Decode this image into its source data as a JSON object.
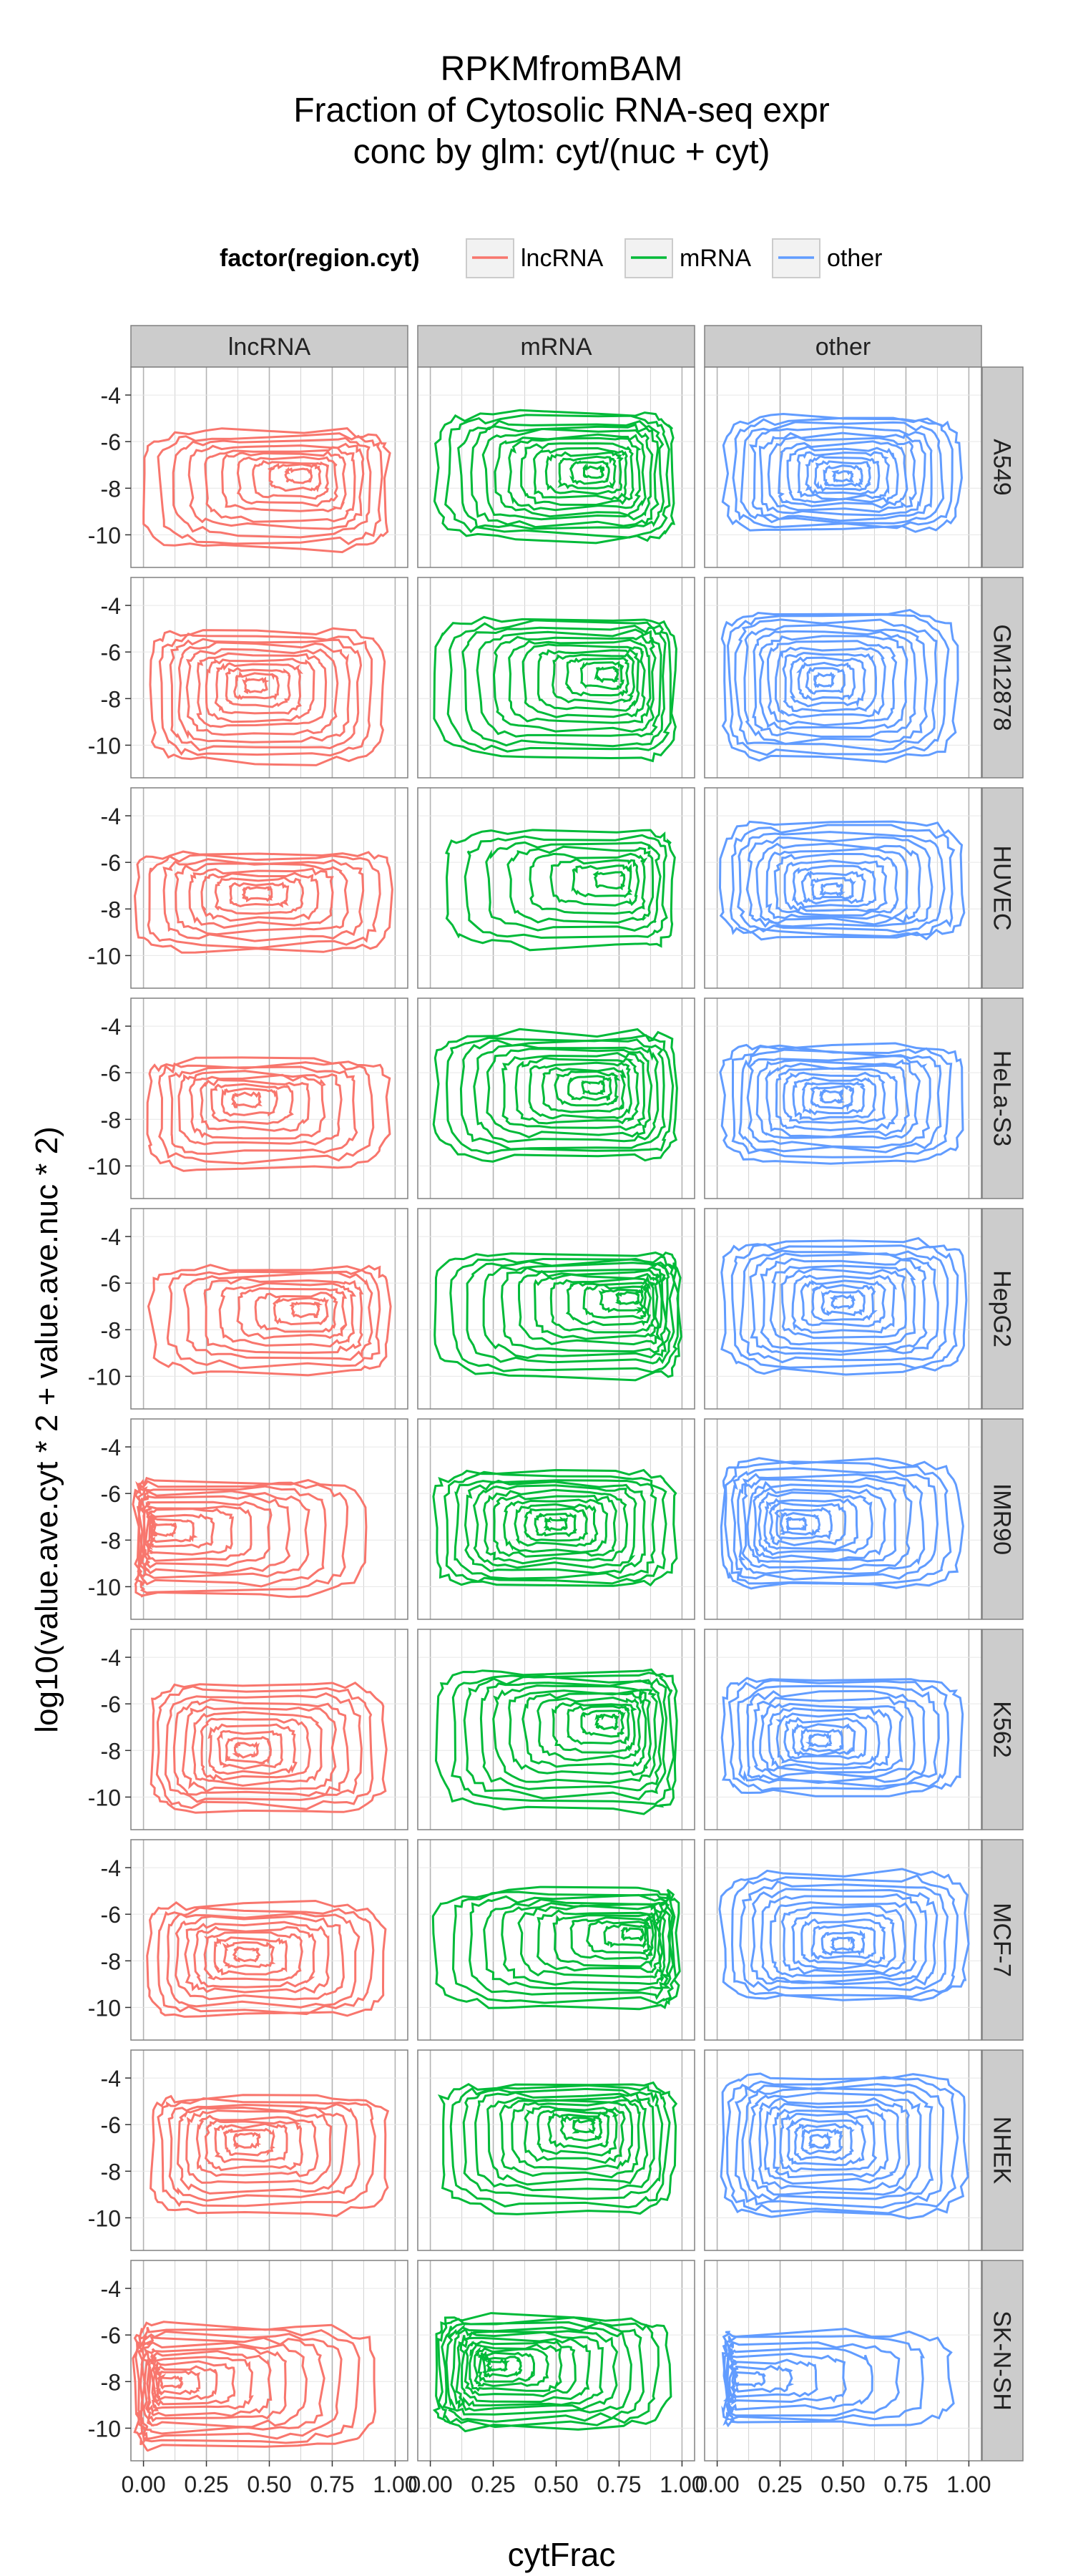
{
  "chart_data": {
    "type": "contour",
    "title": [
      "RPKMfromBAM",
      "Fraction of Cytosolic RNA-seq expr",
      "conc by glm: cyt/(nuc + cyt)"
    ],
    "xlabel": "cytFrac",
    "ylabel": "log10(value.ave.cyt * 2 + value.ave.nuc * 2)",
    "legend": {
      "title": "factor(region.cyt)",
      "placement": "top",
      "items": [
        {
          "name": "lncRNA",
          "color": "#F8766D"
        },
        {
          "name": "mRNA",
          "color": "#00BA38"
        },
        {
          "name": "other",
          "color": "#619CFF"
        }
      ]
    },
    "col_facets": [
      "lncRNA",
      "mRNA",
      "other"
    ],
    "row_facets": [
      "A549",
      "GM12878",
      "HUVEC",
      "HeLa-S3",
      "HepG2",
      "IMR90",
      "K562",
      "MCF-7",
      "NHEK",
      "SK-N-SH"
    ],
    "xlim": [
      -0.05,
      1.05
    ],
    "ylim": [
      -11.4,
      -2.8
    ],
    "x_ticks": [
      0,
      0.25,
      0.5,
      0.75,
      1
    ],
    "x_tick_labels": [
      "0.00",
      "0.25",
      "0.50",
      "0.75",
      "1.00"
    ],
    "y_ticks": [
      -4,
      -6,
      -8,
      -10
    ],
    "y_tick_labels": [
      "-4",
      "-6",
      "-8",
      "-10"
    ],
    "grid": true,
    "panels": [
      {
        "row": "A549",
        "col": "lncRNA",
        "x0": 0.0,
        "x1": 0.97,
        "y0": -10.6,
        "y1": -5.6,
        "cx": 0.63,
        "cy": -7.4,
        "levels": 10
      },
      {
        "row": "A549",
        "col": "mRNA",
        "x0": 0.02,
        "x1": 0.97,
        "y0": -10.2,
        "y1": -4.8,
        "cx": 0.66,
        "cy": -7.3,
        "levels": 13
      },
      {
        "row": "A549",
        "col": "other",
        "x0": 0.03,
        "x1": 0.96,
        "y0": -9.8,
        "y1": -4.9,
        "cx": 0.5,
        "cy": -7.5,
        "levels": 13
      },
      {
        "row": "GM12878",
        "col": "lncRNA",
        "x0": 0.03,
        "x1": 0.95,
        "y0": -10.7,
        "y1": -5.1,
        "cx": 0.44,
        "cy": -7.4,
        "levels": 11
      },
      {
        "row": "GM12878",
        "col": "mRNA",
        "x0": 0.02,
        "x1": 0.97,
        "y0": -10.6,
        "y1": -4.6,
        "cx": 0.72,
        "cy": -6.9,
        "levels": 12
      },
      {
        "row": "GM12878",
        "col": "other",
        "x0": 0.02,
        "x1": 0.95,
        "y0": -10.6,
        "y1": -4.3,
        "cx": 0.42,
        "cy": -7.2,
        "levels": 13
      },
      {
        "row": "HUVEC",
        "col": "lncRNA",
        "x0": -0.03,
        "x1": 0.99,
        "y0": -9.8,
        "y1": -5.6,
        "cx": 0.45,
        "cy": -7.3,
        "levels": 9
      },
      {
        "row": "HUVEC",
        "col": "mRNA",
        "x0": 0.06,
        "x1": 0.96,
        "y0": -9.6,
        "y1": -4.7,
        "cx": 0.74,
        "cy": -6.7,
        "levels": 8
      },
      {
        "row": "HUVEC",
        "col": "other",
        "x0": 0.02,
        "x1": 0.98,
        "y0": -9.2,
        "y1": -4.3,
        "cx": 0.45,
        "cy": -7.2,
        "levels": 12
      },
      {
        "row": "HeLa-S3",
        "col": "lncRNA",
        "x0": 0.02,
        "x1": 0.97,
        "y0": -10.1,
        "y1": -5.5,
        "cx": 0.4,
        "cy": -7.1,
        "levels": 9
      },
      {
        "row": "HeLa-S3",
        "col": "mRNA",
        "x0": 0.02,
        "x1": 0.98,
        "y0": -9.7,
        "y1": -4.3,
        "cx": 0.66,
        "cy": -6.6,
        "levels": 12
      },
      {
        "row": "HeLa-S3",
        "col": "other",
        "x0": 0.02,
        "x1": 0.97,
        "y0": -9.8,
        "y1": -4.8,
        "cx": 0.45,
        "cy": -7.0,
        "levels": 12
      },
      {
        "row": "HepG2",
        "col": "lncRNA",
        "x0": 0.03,
        "x1": 0.97,
        "y0": -9.8,
        "y1": -5.3,
        "cx": 0.66,
        "cy": -7.1,
        "levels": 9
      },
      {
        "row": "HepG2",
        "col": "mRNA",
        "x0": 0.02,
        "x1": 0.99,
        "y0": -10.0,
        "y1": -4.8,
        "cx": 0.81,
        "cy": -6.6,
        "levels": 12
      },
      {
        "row": "HepG2",
        "col": "other",
        "x0": 0.02,
        "x1": 0.99,
        "y0": -9.8,
        "y1": -4.2,
        "cx": 0.5,
        "cy": -6.8,
        "levels": 12
      },
      {
        "row": "IMR90",
        "col": "lncRNA",
        "x0": -0.03,
        "x1": 0.88,
        "y0": -10.4,
        "y1": -5.4,
        "cx": 0.05,
        "cy": -7.5,
        "levels": 11
      },
      {
        "row": "IMR90",
        "col": "mRNA",
        "x0": 0.02,
        "x1": 0.97,
        "y0": -10.0,
        "y1": -5.0,
        "cx": 0.5,
        "cy": -7.3,
        "levels": 12
      },
      {
        "row": "IMR90",
        "col": "other",
        "x0": 0.02,
        "x1": 0.97,
        "y0": -10.0,
        "y1": -4.6,
        "cx": 0.3,
        "cy": -7.3,
        "levels": 13
      },
      {
        "row": "K562",
        "col": "lncRNA",
        "x0": 0.03,
        "x1": 0.96,
        "y0": -10.6,
        "y1": -5.1,
        "cx": 0.4,
        "cy": -8.0,
        "levels": 11
      },
      {
        "row": "K562",
        "col": "mRNA",
        "x0": 0.03,
        "x1": 0.98,
        "y0": -10.6,
        "y1": -4.6,
        "cx": 0.72,
        "cy": -6.7,
        "levels": 12
      },
      {
        "row": "K562",
        "col": "other",
        "x0": 0.02,
        "x1": 0.97,
        "y0": -9.8,
        "y1": -4.9,
        "cx": 0.4,
        "cy": -7.6,
        "levels": 12
      },
      {
        "row": "MCF-7",
        "col": "lncRNA",
        "x0": 0.02,
        "x1": 0.96,
        "y0": -10.4,
        "y1": -5.6,
        "cx": 0.4,
        "cy": -7.7,
        "levels": 10
      },
      {
        "row": "MCF-7",
        "col": "mRNA",
        "x0": 0.02,
        "x1": 0.98,
        "y0": -10.0,
        "y1": -5.0,
        "cx": 0.83,
        "cy": -6.8,
        "levels": 12
      },
      {
        "row": "MCF-7",
        "col": "other",
        "x0": 0.02,
        "x1": 0.99,
        "y0": -9.6,
        "y1": -4.2,
        "cx": 0.5,
        "cy": -7.3,
        "levels": 12
      },
      {
        "row": "NHEK",
        "col": "lncRNA",
        "x0": 0.03,
        "x1": 0.97,
        "y0": -9.8,
        "y1": -4.8,
        "cx": 0.4,
        "cy": -6.6,
        "levels": 10
      },
      {
        "row": "NHEK",
        "col": "mRNA",
        "x0": 0.04,
        "x1": 0.97,
        "y0": -9.7,
        "y1": -4.3,
        "cx": 0.62,
        "cy": -6.0,
        "levels": 12
      },
      {
        "row": "NHEK",
        "col": "other",
        "x0": 0.02,
        "x1": 0.99,
        "y0": -9.9,
        "y1": -3.9,
        "cx": 0.4,
        "cy": -6.7,
        "levels": 13
      },
      {
        "row": "SK-N-SH",
        "col": "lncRNA",
        "x0": -0.03,
        "x1": 0.92,
        "y0": -10.8,
        "y1": -5.6,
        "cx": 0.08,
        "cy": -8.0,
        "levels": 12
      },
      {
        "row": "SK-N-SH",
        "col": "mRNA",
        "x0": 0.02,
        "x1": 0.95,
        "y0": -10.0,
        "y1": -5.2,
        "cx": 0.25,
        "cy": -7.3,
        "levels": 13
      },
      {
        "row": "SK-N-SH",
        "col": "other",
        "x0": 0.03,
        "x1": 0.93,
        "y0": -9.8,
        "y1": -5.9,
        "cx": 0.08,
        "cy": -7.9,
        "levels": 8
      }
    ]
  }
}
